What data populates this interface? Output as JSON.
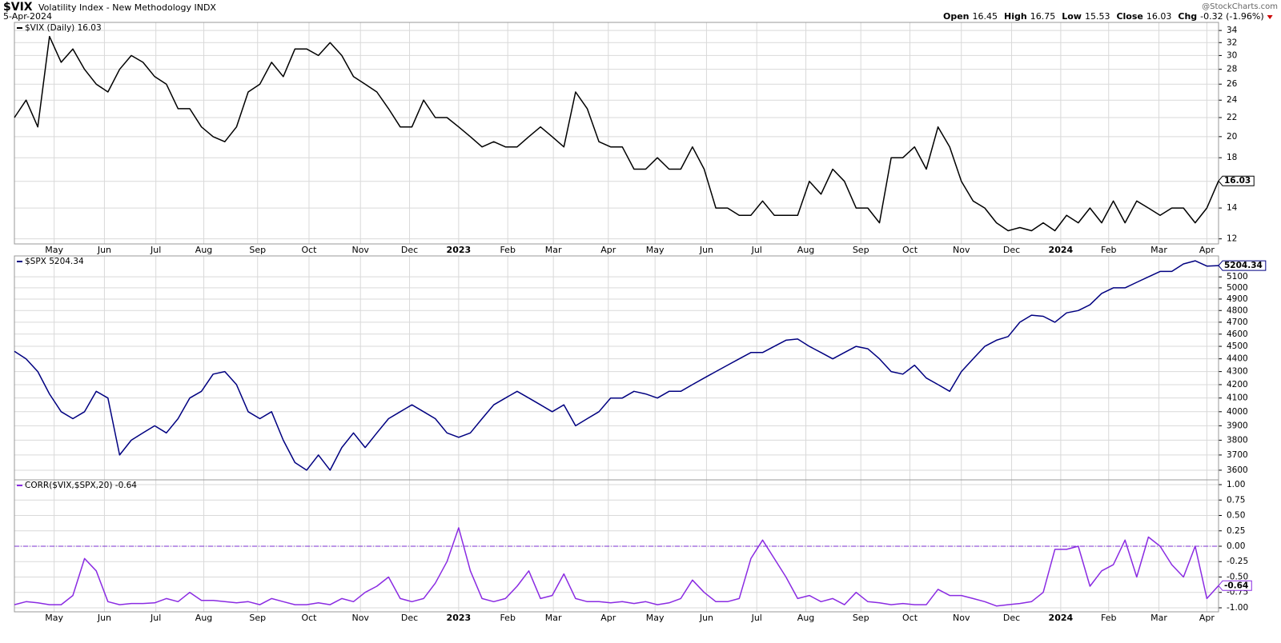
{
  "header": {
    "symbol": "$VIX",
    "description": "Volatility Index - New Methodology  INDX",
    "date": "5-Apr-2024",
    "credit": "@StockCharts.com",
    "quote": [
      {
        "label": "Open",
        "value": "16.45"
      },
      {
        "label": "High",
        "value": "16.75"
      },
      {
        "label": "Low",
        "value": "15.53"
      },
      {
        "label": "Close",
        "value": "16.03"
      },
      {
        "label": "Chg",
        "value": "-0.32 (-1.96%)"
      }
    ]
  },
  "chart_data": [
    {
      "type": "line",
      "log": true,
      "grid": true,
      "xlim": [
        0,
        103
      ],
      "ylim": [
        11.7,
        35.4
      ],
      "xticks": [
        {
          "value": 3.4,
          "label": "May"
        },
        {
          "value": 7.7,
          "label": "Jun"
        },
        {
          "value": 12.1,
          "label": "Jul"
        },
        {
          "value": 16.2,
          "label": "Aug"
        },
        {
          "value": 20.8,
          "label": "Sep"
        },
        {
          "value": 25.2,
          "label": "Oct"
        },
        {
          "value": 29.6,
          "label": "Nov"
        },
        {
          "value": 33.8,
          "label": "Dec"
        },
        {
          "value": 38.0,
          "label": "2023"
        },
        {
          "value": 42.2,
          "label": "Feb"
        },
        {
          "value": 46.1,
          "label": "Mar"
        },
        {
          "value": 50.8,
          "label": "Apr"
        },
        {
          "value": 54.8,
          "label": "May"
        },
        {
          "value": 59.2,
          "label": "Jun"
        },
        {
          "value": 63.5,
          "label": "Jul"
        },
        {
          "value": 67.7,
          "label": "Aug"
        },
        {
          "value": 72.4,
          "label": "Sep"
        },
        {
          "value": 76.6,
          "label": "Oct"
        },
        {
          "value": 81.0,
          "label": "Nov"
        },
        {
          "value": 85.3,
          "label": "Dec"
        },
        {
          "value": 89.5,
          "label": "2024"
        },
        {
          "value": 93.6,
          "label": "Feb"
        },
        {
          "value": 97.9,
          "label": "Mar"
        },
        {
          "value": 102.0,
          "label": "Apr"
        }
      ],
      "yticks": [
        12,
        14,
        16,
        18,
        20,
        22,
        24,
        26,
        28,
        30,
        32,
        34
      ],
      "series": [
        {
          "name": "$VIX (Daily) 16.03",
          "color": "#000000",
          "values": [
            22,
            24,
            21,
            33,
            29,
            31,
            28,
            26,
            25,
            28,
            30,
            29,
            27,
            26,
            23,
            23,
            21,
            20,
            19.5,
            21,
            25,
            26,
            29,
            27,
            31,
            31,
            30,
            32,
            30,
            27,
            26,
            25,
            23,
            21,
            21,
            24,
            22,
            22,
            21,
            20,
            19,
            19.5,
            19,
            19,
            20,
            21,
            20,
            19,
            25,
            23,
            19.5,
            19,
            19,
            17,
            17,
            18,
            17,
            17,
            19,
            17,
            14,
            14,
            13.5,
            13.5,
            14.5,
            13.5,
            13.5,
            13.5,
            16,
            15,
            17,
            16,
            14,
            14,
            13,
            18,
            18,
            19,
            17,
            21,
            19,
            16,
            14.5,
            14,
            13,
            12.5,
            12.7,
            12.5,
            13,
            12.5,
            13.5,
            13,
            14,
            13,
            14.5,
            13,
            14.5,
            14,
            13.5,
            14,
            14,
            13,
            14,
            16.03
          ]
        }
      ]
    },
    {
      "type": "line",
      "log": true,
      "grid": true,
      "xlim": [
        0,
        103
      ],
      "ylim": [
        3538,
        5296
      ],
      "xticks": [
        3.4,
        7.7,
        12.1,
        16.2,
        20.8,
        25.2,
        29.6,
        33.8,
        38.0,
        42.2,
        46.1,
        50.8,
        54.8,
        59.2,
        63.5,
        67.7,
        72.4,
        76.6,
        81.0,
        85.3,
        89.5,
        93.6,
        97.9,
        102.0
      ],
      "yticks": [
        3600,
        3700,
        3800,
        3900,
        4000,
        4100,
        4200,
        4300,
        4400,
        4500,
        4600,
        4700,
        4800,
        4900,
        5000,
        5100
      ],
      "series": [
        {
          "name": "$SPX 5204.34",
          "color": "#000080",
          "values": [
            4460,
            4400,
            4300,
            4130,
            4000,
            3950,
            4000,
            4150,
            4100,
            3700,
            3800,
            3850,
            3900,
            3850,
            3950,
            4100,
            4150,
            4280,
            4300,
            4200,
            4000,
            3950,
            4000,
            3800,
            3650,
            3600,
            3700,
            3600,
            3750,
            3850,
            3750,
            3850,
            3950,
            4000,
            4050,
            4000,
            3950,
            3850,
            3820,
            3850,
            3950,
            4050,
            4100,
            4150,
            4100,
            4050,
            4000,
            4050,
            3900,
            3950,
            4000,
            4100,
            4100,
            4150,
            4130,
            4100,
            4150,
            4150,
            4200,
            4250,
            4300,
            4350,
            4400,
            4450,
            4450,
            4500,
            4550,
            4560,
            4500,
            4450,
            4400,
            4450,
            4500,
            4480,
            4400,
            4300,
            4280,
            4350,
            4250,
            4200,
            4150,
            4300,
            4400,
            4500,
            4550,
            4580,
            4700,
            4760,
            4750,
            4700,
            4780,
            4800,
            4850,
            4950,
            5000,
            5000,
            5050,
            5100,
            5150,
            5150,
            5220,
            5250,
            5200,
            5204.34
          ]
        }
      ]
    },
    {
      "type": "line",
      "log": false,
      "grid": true,
      "xlim": [
        0,
        103
      ],
      "ylim": [
        -1.065,
        1.078
      ],
      "hline": 0,
      "xticks": [
        {
          "value": 3.4,
          "label": "May"
        },
        {
          "value": 7.7,
          "label": "Jun"
        },
        {
          "value": 12.1,
          "label": "Jul"
        },
        {
          "value": 16.2,
          "label": "Aug"
        },
        {
          "value": 20.8,
          "label": "Sep"
        },
        {
          "value": 25.2,
          "label": "Oct"
        },
        {
          "value": 29.6,
          "label": "Nov"
        },
        {
          "value": 33.8,
          "label": "Dec"
        },
        {
          "value": 38.0,
          "label": "2023"
        },
        {
          "value": 42.2,
          "label": "Feb"
        },
        {
          "value": 46.1,
          "label": "Mar"
        },
        {
          "value": 50.8,
          "label": "Apr"
        },
        {
          "value": 54.8,
          "label": "May"
        },
        {
          "value": 59.2,
          "label": "Jun"
        },
        {
          "value": 63.5,
          "label": "Jul"
        },
        {
          "value": 67.7,
          "label": "Aug"
        },
        {
          "value": 72.4,
          "label": "Sep"
        },
        {
          "value": 76.6,
          "label": "Oct"
        },
        {
          "value": 81.0,
          "label": "Nov"
        },
        {
          "value": 85.3,
          "label": "Dec"
        },
        {
          "value": 89.5,
          "label": "2024"
        },
        {
          "value": 93.6,
          "label": "Feb"
        },
        {
          "value": 97.9,
          "label": "Mar"
        },
        {
          "value": 102.0,
          "label": "Apr"
        }
      ],
      "yticks": [
        {
          "value": -1,
          "label": "-1.00"
        },
        {
          "value": -0.75,
          "label": "-0.75"
        },
        {
          "value": -0.5,
          "label": "-0.50"
        },
        {
          "value": -0.25,
          "label": "-0.25"
        },
        {
          "value": 0,
          "label": "0.00"
        },
        {
          "value": 0.25,
          "label": "0.25"
        },
        {
          "value": 0.5,
          "label": "0.50"
        },
        {
          "value": 0.75,
          "label": "0.75"
        },
        {
          "value": 1,
          "label": "1.00"
        }
      ],
      "series": [
        {
          "name": "CORR($VIX,$SPX,20) -0.64",
          "color": "#8a2be2",
          "values": [
            -0.95,
            -0.9,
            -0.92,
            -0.95,
            -0.95,
            -0.8,
            -0.2,
            -0.4,
            -0.9,
            -0.95,
            -0.93,
            -0.93,
            -0.92,
            -0.85,
            -0.9,
            -0.75,
            -0.88,
            -0.88,
            -0.9,
            -0.92,
            -0.9,
            -0.95,
            -0.85,
            -0.9,
            -0.95,
            -0.95,
            -0.92,
            -0.95,
            -0.85,
            -0.9,
            -0.75,
            -0.65,
            -0.5,
            -0.85,
            -0.9,
            -0.85,
            -0.6,
            -0.25,
            0.3,
            -0.4,
            -0.85,
            -0.9,
            -0.85,
            -0.65,
            -0.4,
            -0.85,
            -0.8,
            -0.45,
            -0.85,
            -0.9,
            -0.9,
            -0.92,
            -0.9,
            -0.93,
            -0.9,
            -0.95,
            -0.92,
            -0.85,
            -0.55,
            -0.75,
            -0.9,
            -0.9,
            -0.85,
            -0.2,
            0.1,
            -0.2,
            -0.5,
            -0.85,
            -0.8,
            -0.9,
            -0.85,
            -0.95,
            -0.75,
            -0.9,
            -0.92,
            -0.95,
            -0.93,
            -0.95,
            -0.95,
            -0.7,
            -0.8,
            -0.8,
            -0.85,
            -0.9,
            -0.97,
            -0.95,
            -0.93,
            -0.9,
            -0.75,
            -0.05,
            -0.05,
            0,
            -0.65,
            -0.4,
            -0.3,
            0.1,
            -0.5,
            0.15,
            0,
            -0.3,
            -0.5,
            0,
            -0.85,
            -0.64
          ]
        }
      ]
    }
  ]
}
